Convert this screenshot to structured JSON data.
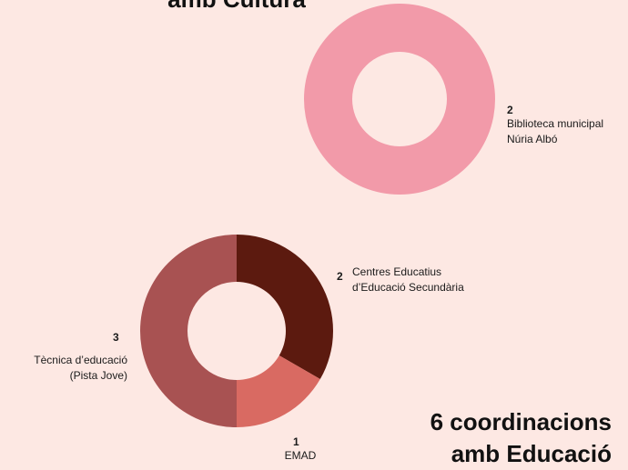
{
  "chart_data": [
    {
      "type": "pie",
      "title": "amb Cultura",
      "categories": [
        "Biblioteca municipal Núria Albó"
      ],
      "values": [
        2
      ],
      "colors": [
        "#f29aa9"
      ],
      "donut": true
    },
    {
      "type": "pie",
      "title": "6 coordinacions amb Educació",
      "categories": [
        "Centres Educatius d’Educació Secundària",
        "EMAD",
        "Tècnica d’educació (Pista Jove)"
      ],
      "values": [
        2,
        1,
        3
      ],
      "colors": [
        "#5c1a0f",
        "#d96a62",
        "#a85252"
      ],
      "donut": true
    }
  ]
}
